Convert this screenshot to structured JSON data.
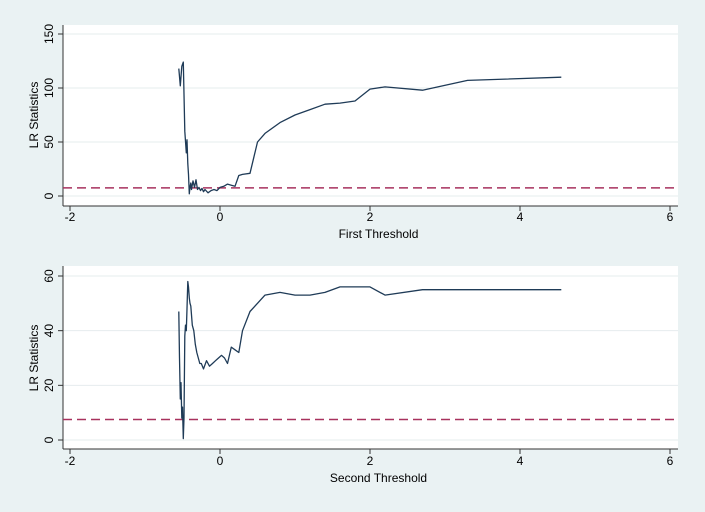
{
  "chart_data": [
    {
      "type": "line",
      "xlabel": "First Threshold",
      "ylabel": "LR Statistics",
      "xlim": [
        -2,
        6
      ],
      "ylim": [
        0,
        150
      ],
      "xticks": [
        -2,
        0,
        2,
        4,
        6
      ],
      "yticks": [
        0,
        50,
        100,
        150
      ],
      "grid": true,
      "reference_line": {
        "y": 7.5,
        "style": "dashed",
        "color": "#a8325e"
      },
      "series": [
        {
          "name": "LR",
          "color": "#1f3b57",
          "x": [
            -0.55,
            -0.53,
            -0.51,
            -0.49,
            -0.47,
            -0.45,
            -0.44,
            -0.43,
            -0.42,
            -0.41,
            -0.4,
            -0.39,
            -0.38,
            -0.36,
            -0.34,
            -0.32,
            -0.3,
            -0.28,
            -0.26,
            -0.24,
            -0.22,
            -0.2,
            -0.16,
            -0.12,
            -0.08,
            -0.04,
            0.0,
            0.05,
            0.1,
            0.15,
            0.2,
            0.25,
            0.3,
            0.4,
            0.5,
            0.6,
            0.8,
            1.0,
            1.2,
            1.4,
            1.6,
            1.8,
            2.0,
            2.2,
            2.7,
            3.3,
            4.55
          ],
          "y": [
            118,
            102,
            120,
            124,
            60,
            40,
            52,
            30,
            20,
            2,
            8,
            12,
            6,
            14,
            8,
            15,
            6,
            8,
            5,
            7,
            4,
            6,
            3,
            5,
            6,
            5,
            8,
            9,
            11,
            10,
            9,
            19,
            20,
            21,
            50,
            58,
            68,
            75,
            80,
            85,
            86,
            88,
            99,
            101,
            98,
            107,
            110
          ]
        }
      ]
    },
    {
      "type": "line",
      "xlabel": "Second Threshold",
      "ylabel": "LR Statistics",
      "xlim": [
        -2,
        6
      ],
      "ylim": [
        0,
        60
      ],
      "xticks": [
        -2,
        0,
        2,
        4,
        6
      ],
      "yticks": [
        0,
        20,
        40,
        60
      ],
      "grid": true,
      "reference_line": {
        "y": 7.5,
        "style": "dashed",
        "color": "#a8325e"
      },
      "series": [
        {
          "name": "LR",
          "color": "#1f3b57",
          "x": [
            -0.55,
            -0.54,
            -0.53,
            -0.52,
            -0.51,
            -0.5,
            -0.49,
            -0.48,
            -0.47,
            -0.46,
            -0.45,
            -0.44,
            -0.43,
            -0.42,
            -0.41,
            -0.4,
            -0.39,
            -0.37,
            -0.35,
            -0.33,
            -0.31,
            -0.29,
            -0.27,
            -0.25,
            -0.22,
            -0.18,
            -0.14,
            -0.1,
            -0.06,
            -0.02,
            0.02,
            0.06,
            0.1,
            0.15,
            0.2,
            0.25,
            0.3,
            0.4,
            0.5,
            0.6,
            0.8,
            1.0,
            1.2,
            1.4,
            1.6,
            1.8,
            2.0,
            2.2,
            2.7,
            3.3,
            4.55
          ],
          "y": [
            47,
            30,
            15,
            21,
            8,
            12,
            0.5,
            8,
            38,
            42,
            40,
            48,
            58,
            56,
            52,
            50,
            49,
            42,
            40,
            35,
            32,
            30,
            28,
            28,
            26,
            29,
            27,
            28,
            29,
            30,
            31,
            30,
            28,
            34,
            33,
            32,
            40,
            47,
            50,
            53,
            54,
            53,
            53,
            54,
            56,
            56,
            56,
            53,
            55,
            55,
            55
          ]
        }
      ]
    }
  ]
}
